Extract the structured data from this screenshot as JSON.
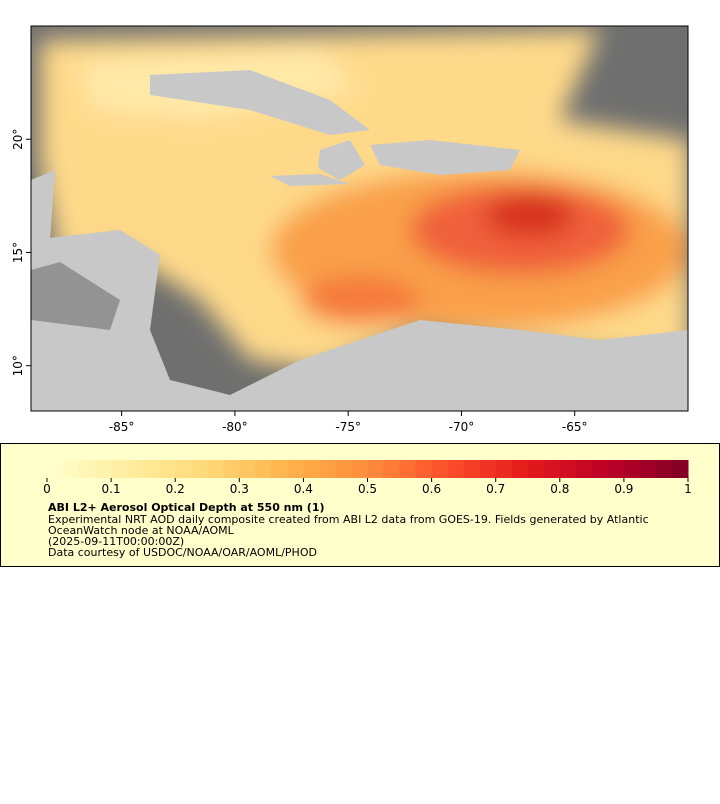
{
  "map": {
    "xlim": [
      -89,
      -60
    ],
    "ylim": [
      8,
      25
    ],
    "xticks": [
      {
        "value": -85,
        "label": "-85°"
      },
      {
        "value": -80,
        "label": "-80°"
      },
      {
        "value": -75,
        "label": "-75°"
      },
      {
        "value": -70,
        "label": "-70°"
      },
      {
        "value": -65,
        "label": "-65°"
      }
    ],
    "yticks": [
      {
        "value": 10,
        "label": "10°"
      },
      {
        "value": 15,
        "label": "15°"
      },
      {
        "value": 20,
        "label": "20°"
      }
    ]
  },
  "legend": {
    "title": "ABI L2+ Aerosol Optical Depth at 550 nm (1)",
    "lines": [
      "Experimental NRT AOD daily composite created from ABI L2 data from GOES-19. Fields generated by Atlantic",
      "OceanWatch node at NOAA/AOML",
      "(2025-09-11T00:00:00Z)",
      "Data courtesy of USDOC/NOAA/OAR/AOML/PHOD"
    ],
    "colorbar": {
      "range": [
        0,
        1
      ],
      "ticks": [
        0,
        0.1,
        0.2,
        0.3,
        0.4,
        0.5,
        0.6,
        0.7,
        0.8,
        0.9,
        1
      ],
      "colors": [
        "#ffffcc",
        "#ffeda0",
        "#fed976",
        "#feb24c",
        "#fd8d3c",
        "#fc4e2a",
        "#e31a1c",
        "#bd0026",
        "#800026"
      ]
    }
  }
}
